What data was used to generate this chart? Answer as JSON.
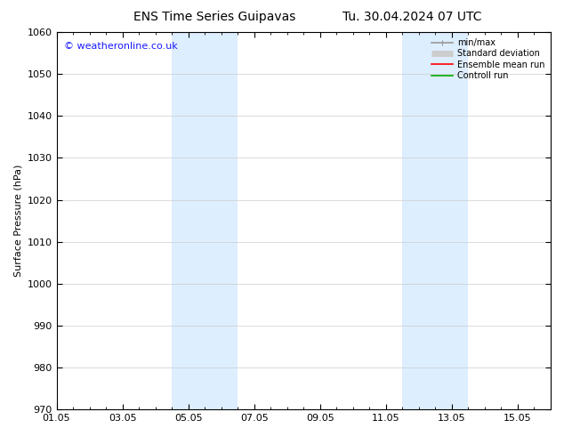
{
  "title_left": "ENS Time Series Guipavas",
  "title_right": "Tu. 30.04.2024 07 UTC",
  "ylabel": "Surface Pressure (hPa)",
  "ylim": [
    970,
    1060
  ],
  "yticks": [
    970,
    980,
    990,
    1000,
    1010,
    1020,
    1030,
    1040,
    1050,
    1060
  ],
  "xtick_labels": [
    "01.05",
    "03.05",
    "05.05",
    "07.05",
    "09.05",
    "11.05",
    "13.05",
    "15.05"
  ],
  "xtick_positions": [
    0,
    2,
    4,
    6,
    8,
    10,
    12,
    14
  ],
  "xlim": [
    0,
    15
  ],
  "shade_bands": [
    {
      "x_start": 3.5,
      "x_end": 5.5
    },
    {
      "x_start": 10.5,
      "x_end": 12.5
    }
  ],
  "shade_color": "#ddeeff",
  "watermark": "© weatheronline.co.uk",
  "watermark_color": "#1a1aff",
  "watermark_fontsize": 8,
  "legend_entries": [
    {
      "label": "min/max",
      "color": "#999999",
      "lw": 1.2
    },
    {
      "label": "Standard deviation",
      "color": "#cccccc",
      "lw": 5
    },
    {
      "label": "Ensemble mean run",
      "color": "#ff0000",
      "lw": 1.2
    },
    {
      "label": "Controll run",
      "color": "#00aa00",
      "lw": 1.2
    }
  ],
  "background_color": "#ffffff",
  "grid_color": "#cccccc",
  "title_fontsize": 10,
  "ylabel_fontsize": 8,
  "tick_fontsize": 8,
  "legend_fontsize": 7
}
